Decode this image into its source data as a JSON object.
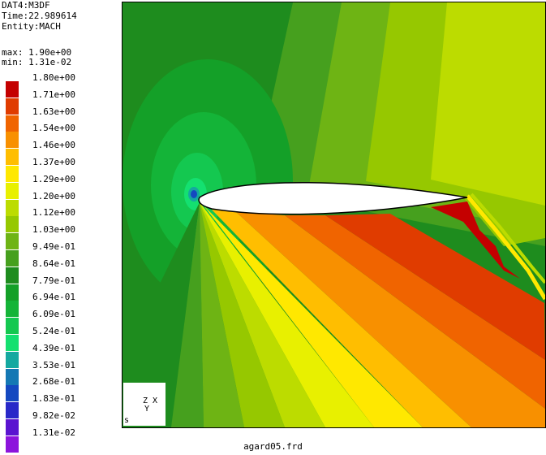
{
  "header": {
    "dataset": "DAT4:M3DF",
    "time": "Time:22.989614",
    "entity": "Entity:MACH"
  },
  "range": {
    "max": "max: 1.90e+00",
    "min": "min: 1.31e-02"
  },
  "legend": {
    "entries": [
      {
        "label": "1.80e+00",
        "color": "#c40000"
      },
      {
        "label": "1.71e+00",
        "color": "#e03c00"
      },
      {
        "label": "1.63e+00",
        "color": "#f06400"
      },
      {
        "label": "1.54e+00",
        "color": "#f89000"
      },
      {
        "label": "1.46e+00",
        "color": "#ffbe00"
      },
      {
        "label": "1.37e+00",
        "color": "#ffe800"
      },
      {
        "label": "1.29e+00",
        "color": "#e8f000"
      },
      {
        "label": "1.20e+00",
        "color": "#bcdc00"
      },
      {
        "label": "1.12e+00",
        "color": "#96c800"
      },
      {
        "label": "1.03e+00",
        "color": "#6eb414"
      },
      {
        "label": "9.49e-01",
        "color": "#46a01e"
      },
      {
        "label": "8.64e-01",
        "color": "#1e8c1e"
      },
      {
        "label": "7.79e-01",
        "color": "#14a028"
      },
      {
        "label": "6.94e-01",
        "color": "#14b438"
      },
      {
        "label": "6.09e-01",
        "color": "#14c850"
      },
      {
        "label": "5.24e-01",
        "color": "#14e070"
      },
      {
        "label": "4.39e-01",
        "color": "#14a8a0"
      },
      {
        "label": "3.53e-01",
        "color": "#1478b4"
      },
      {
        "label": "2.68e-01",
        "color": "#1448c0"
      },
      {
        "label": "1.83e-01",
        "color": "#2828c8"
      },
      {
        "label": "9.82e-02",
        "color": "#5a14d0"
      },
      {
        "label": "1.31e-02",
        "color": "#8c14dc"
      }
    ]
  },
  "triad": {
    "axes": "Z X",
    "yaxis": "Y",
    "scale": "s"
  },
  "footer": {
    "filename": "agard05.frd"
  }
}
